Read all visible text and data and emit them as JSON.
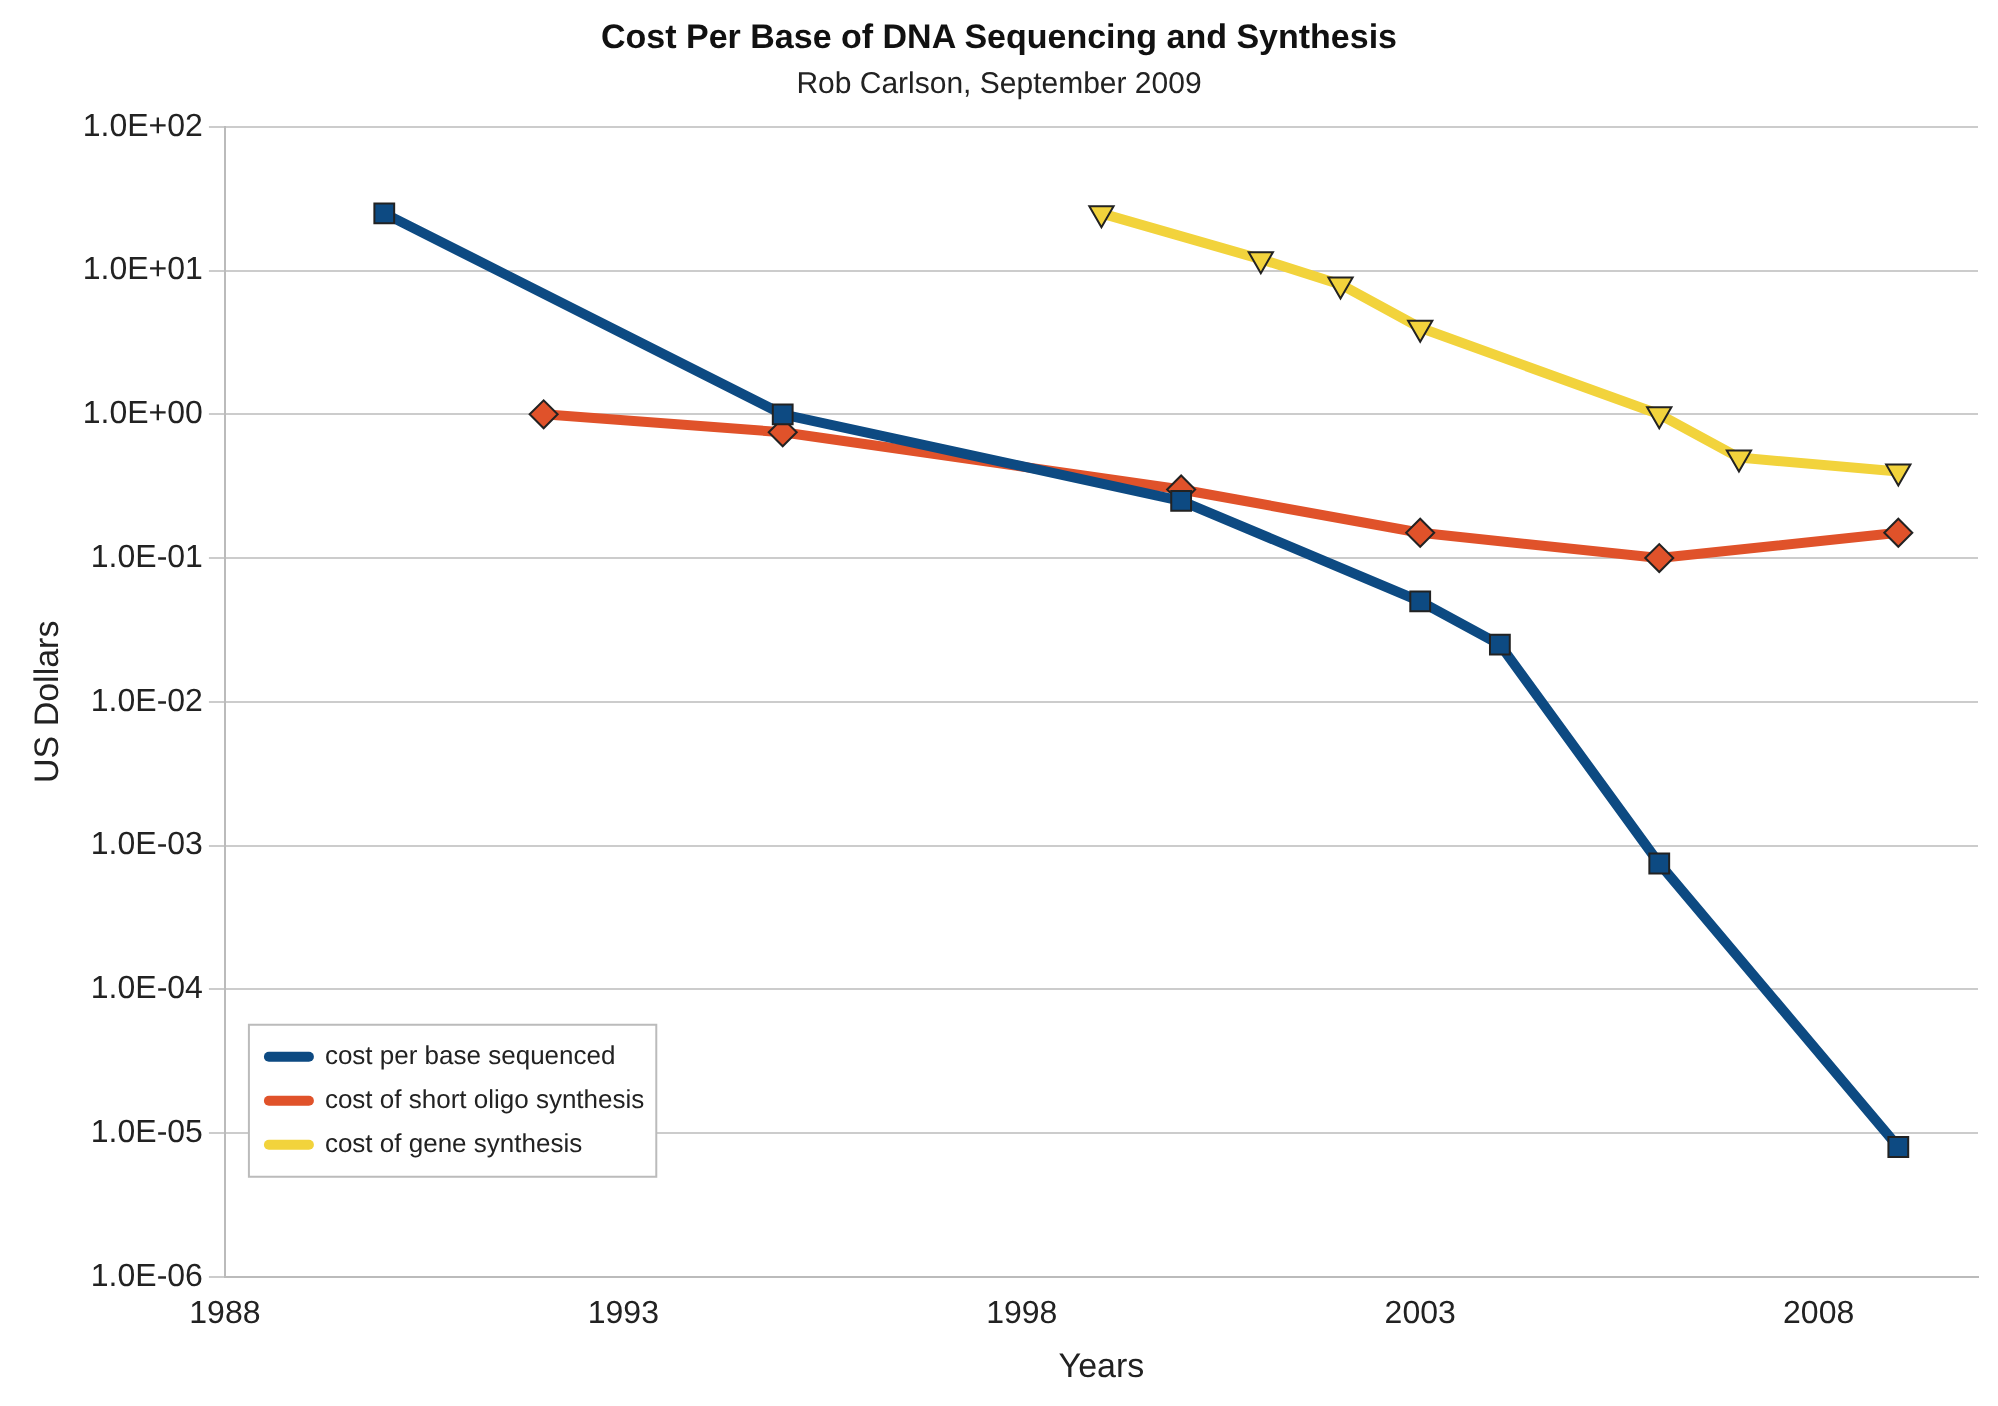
{
  "chart_data": {
    "type": "line",
    "title": "Cost Per Base of DNA Sequencing and Synthesis",
    "subtitle": "Rob Carlson, September 2009",
    "xlabel": "Years",
    "ylabel": "US Dollars",
    "log": "y",
    "grid": "y",
    "legend": "bottom left",
    "xlim": [
      1988,
      2010
    ],
    "xticks": [
      1988,
      1993,
      1998,
      2003,
      2008
    ],
    "ylim": [
      1e-06,
      100
    ],
    "yticks": [
      {
        "value": 100,
        "label": "1.0E+02"
      },
      {
        "value": 10,
        "label": "1.0E+01"
      },
      {
        "value": 1,
        "label": "1.0E+00"
      },
      {
        "value": 0.1,
        "label": "1.0E-01"
      },
      {
        "value": 0.01,
        "label": "1.0E-02"
      },
      {
        "value": 0.001,
        "label": "1.0E-03"
      },
      {
        "value": 0.0001,
        "label": "1.0E-04"
      },
      {
        "value": 1e-05,
        "label": "1.0E-05"
      },
      {
        "value": 1e-06,
        "label": "1.0E-06"
      }
    ],
    "series": [
      {
        "name": "cost per base sequenced",
        "color": "#0d4a82",
        "marker": "square",
        "x": [
          1990,
          1995,
          2000,
          2003,
          2004,
          2006,
          2009
        ],
        "values": [
          25,
          1,
          0.25,
          0.05,
          0.025,
          0.00075,
          8e-06
        ]
      },
      {
        "name": "cost of short oligo synthesis",
        "color": "#e0522a",
        "marker": "diamond",
        "x": [
          1992,
          1995,
          2000,
          2003,
          2006,
          2009
        ],
        "values": [
          1,
          0.75,
          0.3,
          0.15,
          0.1,
          0.15
        ]
      },
      {
        "name": "cost of gene synthesis",
        "color": "#f2d33c",
        "marker": "triangle",
        "x": [
          1999,
          2001,
          2002,
          2003,
          2006,
          2007,
          2009
        ],
        "values": [
          25,
          12,
          8,
          4,
          1,
          0.5,
          0.4
        ]
      }
    ]
  }
}
